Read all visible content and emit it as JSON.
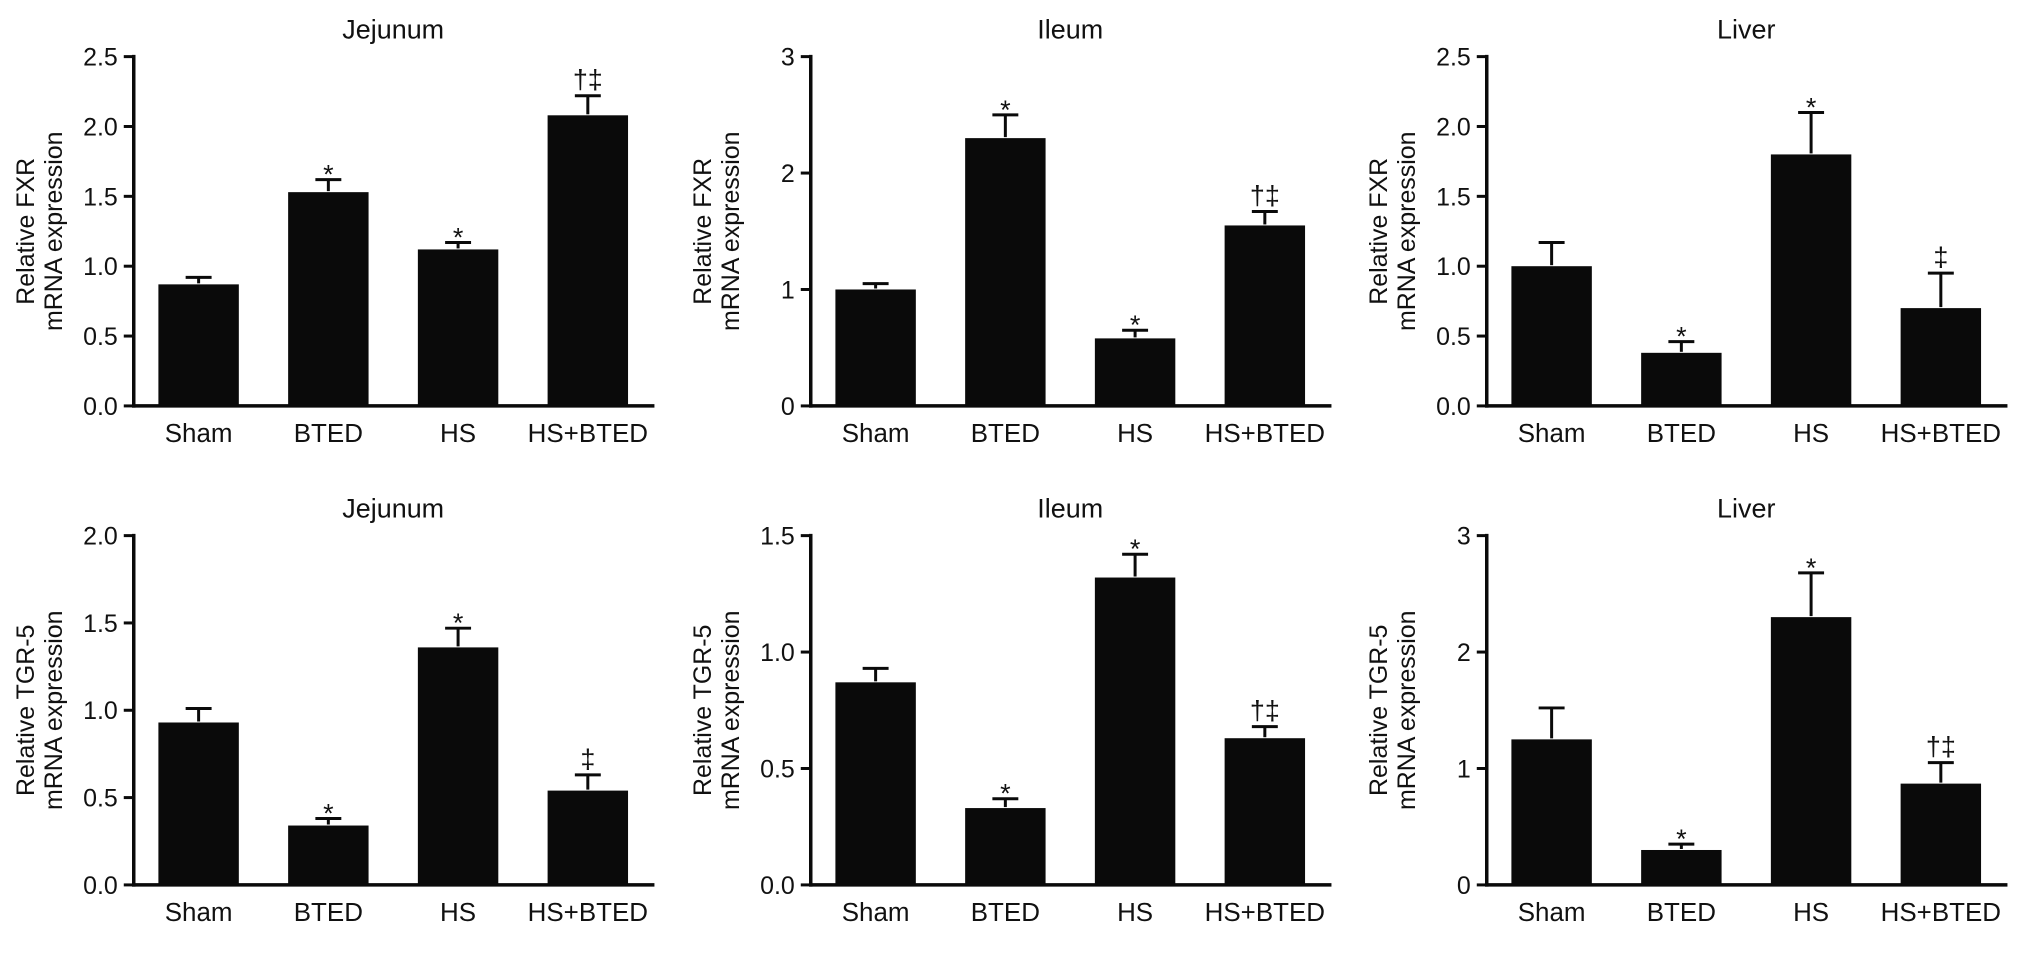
{
  "figure": {
    "background": "#ffffff",
    "bar_color": "#0a0a0a",
    "axis_color": "#0a0a0a",
    "text_color": "#111111"
  },
  "chart_data": [
    {
      "type": "bar",
      "title": "Jejunum",
      "ylabel_line1": "Relative FXR",
      "ylabel_line2": "mRNA expression",
      "xlabel": "",
      "categories": [
        "Sham",
        "BTED",
        "HS",
        "HS+BTED"
      ],
      "values": [
        0.87,
        1.53,
        1.12,
        2.08
      ],
      "errors": [
        0.05,
        0.09,
        0.05,
        0.14
      ],
      "annotations": [
        "",
        "*",
        "*",
        "†‡"
      ],
      "ylim": [
        0,
        2.5
      ],
      "ytick_labels": [
        "0.0",
        "0.5",
        "1.0",
        "1.5",
        "2.0",
        "2.5"
      ],
      "grid": "off",
      "legend": "none"
    },
    {
      "type": "bar",
      "title": "Ileum",
      "ylabel_line1": "Relative FXR",
      "ylabel_line2": "mRNA expression",
      "xlabel": "",
      "categories": [
        "Sham",
        "BTED",
        "HS",
        "HS+BTED"
      ],
      "values": [
        1.0,
        2.3,
        0.58,
        1.55
      ],
      "errors": [
        0.05,
        0.2,
        0.07,
        0.12
      ],
      "annotations": [
        "",
        "*",
        "*",
        "†‡"
      ],
      "ylim": [
        0,
        3
      ],
      "ytick_labels": [
        "0",
        "1",
        "2",
        "3"
      ],
      "grid": "off",
      "legend": "none"
    },
    {
      "type": "bar",
      "title": "Liver",
      "ylabel_line1": "Relative FXR",
      "ylabel_line2": "mRNA expression",
      "xlabel": "",
      "categories": [
        "Sham",
        "BTED",
        "HS",
        "HS+BTED"
      ],
      "values": [
        1.0,
        0.38,
        1.8,
        0.7
      ],
      "errors": [
        0.17,
        0.08,
        0.3,
        0.25
      ],
      "annotations": [
        "",
        "*",
        "*",
        "‡"
      ],
      "ylim": [
        0,
        2.5
      ],
      "ytick_labels": [
        "0.0",
        "0.5",
        "1.0",
        "1.5",
        "2.0",
        "2.5"
      ],
      "grid": "off",
      "legend": "none"
    },
    {
      "type": "bar",
      "title": "Jejunum",
      "ylabel_line1": "Relative TGR-5",
      "ylabel_line2": "mRNA expression",
      "xlabel": "",
      "categories": [
        "Sham",
        "BTED",
        "HS",
        "HS+BTED"
      ],
      "values": [
        0.93,
        0.34,
        1.36,
        0.54
      ],
      "errors": [
        0.08,
        0.04,
        0.11,
        0.09
      ],
      "annotations": [
        "",
        "*",
        "*",
        "‡"
      ],
      "ylim": [
        0,
        2.0
      ],
      "ytick_labels": [
        "0.0",
        "0.5",
        "1.0",
        "1.5",
        "2.0"
      ],
      "grid": "off",
      "legend": "none"
    },
    {
      "type": "bar",
      "title": "Ileum",
      "ylabel_line1": "Relative TGR-5",
      "ylabel_line2": "mRNA expression",
      "xlabel": "",
      "categories": [
        "Sham",
        "BTED",
        "HS",
        "HS+BTED"
      ],
      "values": [
        0.87,
        0.33,
        1.32,
        0.63
      ],
      "errors": [
        0.06,
        0.04,
        0.1,
        0.05
      ],
      "annotations": [
        "",
        "*",
        "*",
        "†‡"
      ],
      "ylim": [
        0,
        1.5
      ],
      "ytick_labels": [
        "0.0",
        "0.5",
        "1.0",
        "1.5"
      ],
      "grid": "off",
      "legend": "none"
    },
    {
      "type": "bar",
      "title": "Liver",
      "ylabel_line1": "Relative TGR-5",
      "ylabel_line2": "mRNA expression",
      "xlabel": "",
      "categories": [
        "Sham",
        "BTED",
        "HS",
        "HS+BTED"
      ],
      "values": [
        1.25,
        0.3,
        2.3,
        0.87
      ],
      "errors": [
        0.27,
        0.05,
        0.38,
        0.18
      ],
      "annotations": [
        "",
        "*",
        "*",
        "†‡"
      ],
      "ylim": [
        0,
        3
      ],
      "ytick_labels": [
        "0",
        "1",
        "2",
        "3"
      ],
      "grid": "off",
      "legend": "none"
    }
  ]
}
